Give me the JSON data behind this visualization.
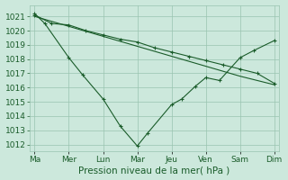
{
  "background_color": "#cce8dc",
  "plot_bg_color": "#cce8dc",
  "grid_color": "#99c4b0",
  "line_color": "#1a5c2a",
  "tick_label_color": "#1a5c2a",
  "xlabel": "Pression niveau de la mer( hPa )",
  "ylim": [
    1011.5,
    1021.8
  ],
  "yticks": [
    1012,
    1013,
    1014,
    1015,
    1016,
    1017,
    1018,
    1019,
    1020,
    1021
  ],
  "x_labels": [
    "Ma",
    "Mer",
    "Lun",
    "Mar",
    "Jeu",
    "Ven",
    "Sam",
    "Dim"
  ],
  "x_positions": [
    0,
    1,
    2,
    3,
    4,
    5,
    6,
    7
  ],
  "trend_line_x": [
    0,
    1,
    2,
    3,
    4,
    5,
    6,
    7
  ],
  "trend_line_y": [
    1021.0,
    1020.3,
    1019.6,
    1018.9,
    1018.2,
    1017.5,
    1016.8,
    1016.2
  ],
  "jagged_x": [
    0,
    0.3,
    1,
    1.4,
    2,
    2.5,
    3,
    3.3,
    4,
    4.3,
    4.7,
    5,
    5.4,
    6,
    6.4,
    7
  ],
  "jagged_y": [
    1021.2,
    1020.5,
    1018.1,
    1016.9,
    1015.2,
    1013.3,
    1011.9,
    1012.8,
    1014.8,
    1015.2,
    1016.1,
    1016.7,
    1016.5,
    1018.1,
    1018.6,
    1019.3
  ],
  "smooth_x": [
    0,
    0.5,
    1,
    1.5,
    2,
    2.5,
    3,
    3.5,
    4,
    4.5,
    5,
    5.5,
    6,
    6.5,
    7
  ],
  "smooth_y": [
    1021.1,
    1020.5,
    1020.4,
    1020.0,
    1019.7,
    1019.4,
    1019.2,
    1018.8,
    1018.5,
    1018.2,
    1017.9,
    1017.6,
    1017.3,
    1017.0,
    1016.3
  ],
  "fontsize_tick": 6.5,
  "fontsize_xlabel": 7.5
}
